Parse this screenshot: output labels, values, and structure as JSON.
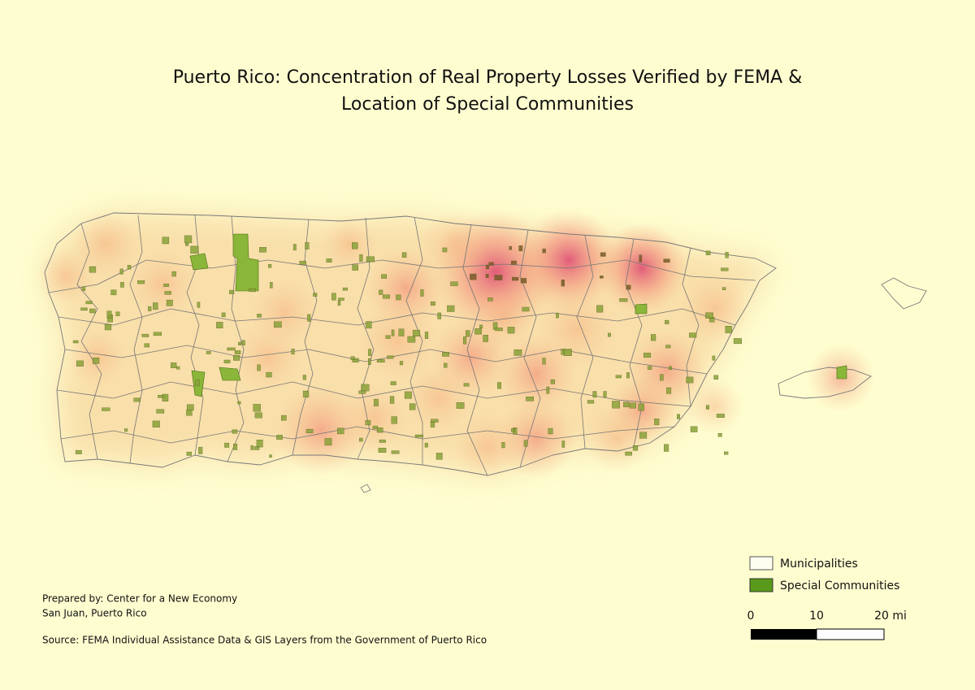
{
  "title": {
    "line1": "Puerto Rico: Concentration of Real Property Losses Verified by FEMA &",
    "line2": "Location of Special Communities"
  },
  "legend": {
    "items": [
      "Municipalities",
      "Special Communities"
    ]
  },
  "scale_bar": {
    "labels": [
      "0",
      "10",
      "20 mi"
    ]
  },
  "credits": {
    "prepared_by": "Prepared by: Center for a New Economy",
    "place": "San Juan, Puerto Rico",
    "source": "Source: FEMA Individual Assistance Data & GIS Layers from the Government of Puerto Rico"
  }
}
